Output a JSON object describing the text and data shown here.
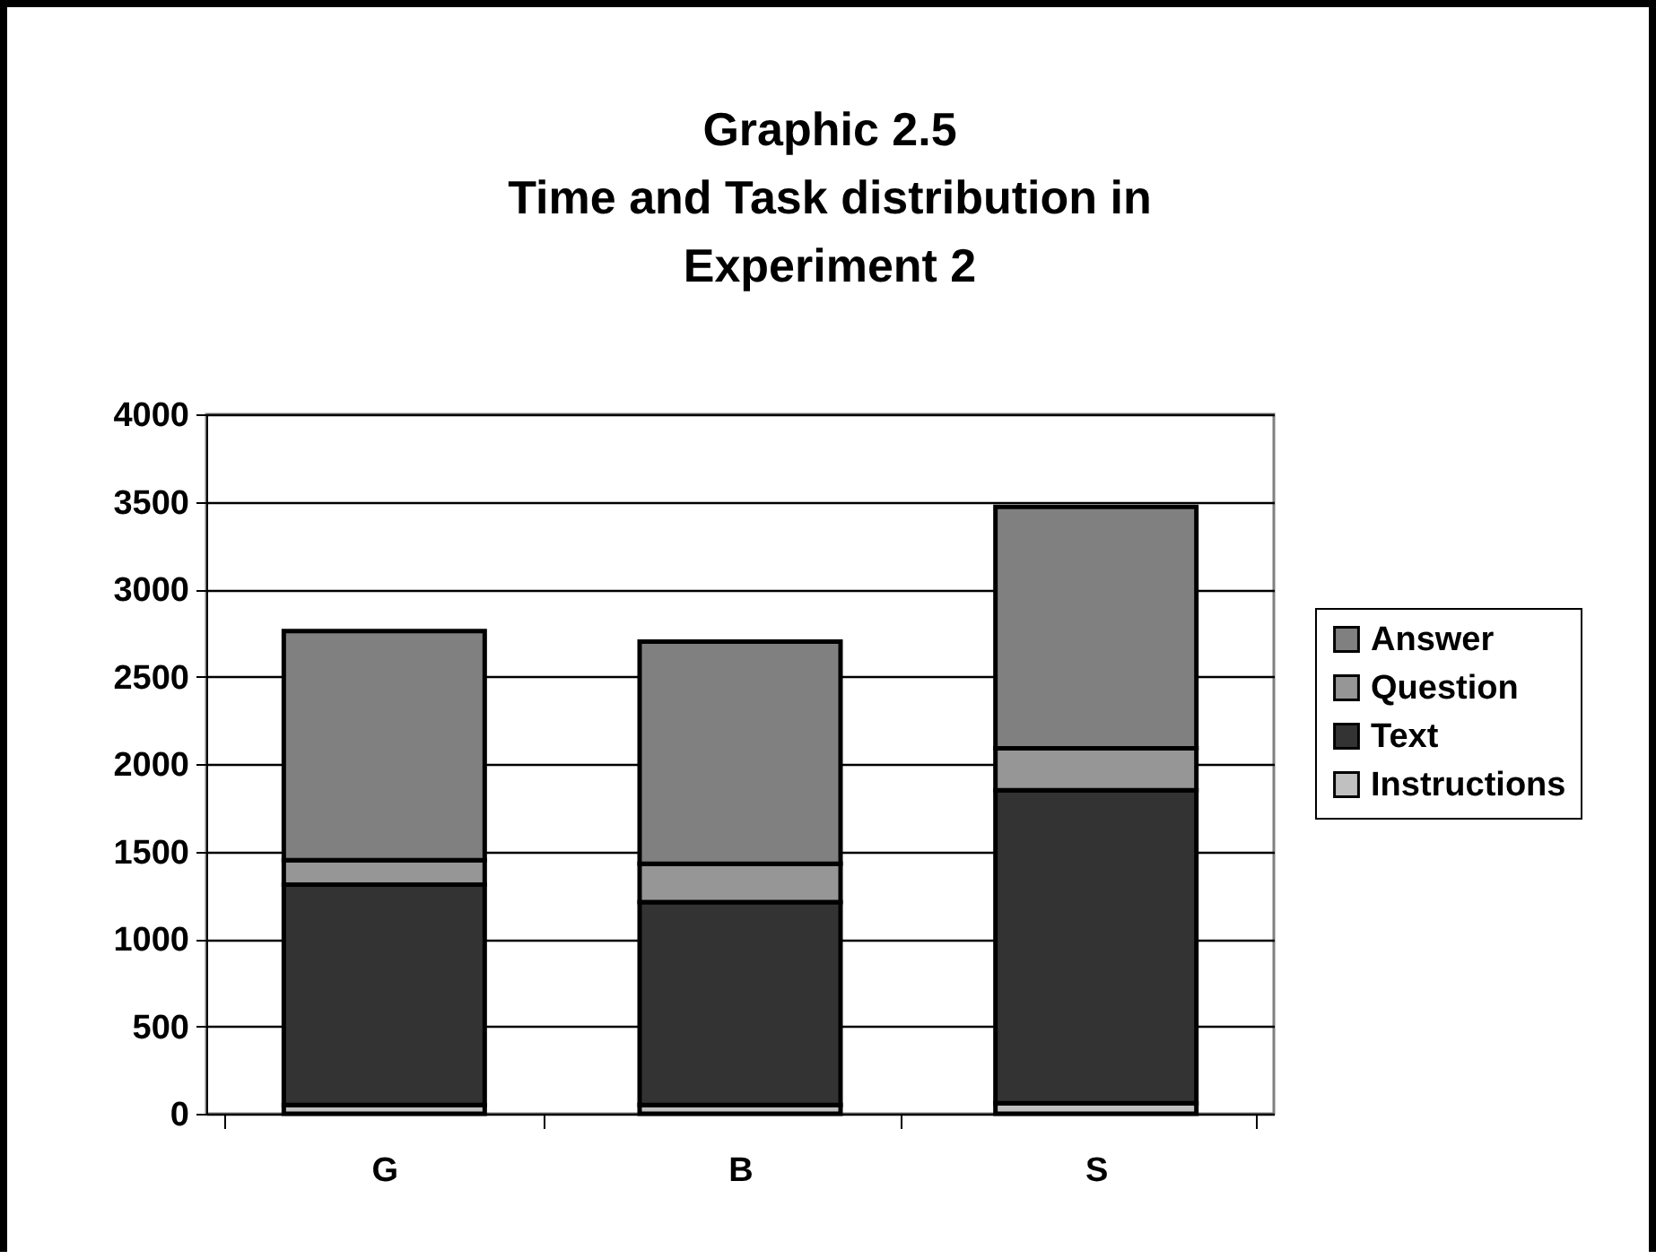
{
  "chart_data": {
    "type": "bar",
    "title": "Graphic 2.5\nTime and Task distribution in\nExperiment 2",
    "categories": [
      "G",
      "B",
      "S"
    ],
    "stacked": true,
    "series": [
      {
        "name": "Instructions",
        "color": "#c0c0c0",
        "values": [
          50,
          50,
          60
        ]
      },
      {
        "name": "Text",
        "color": "#333333",
        "values": [
          1260,
          1160,
          1790
        ]
      },
      {
        "name": "Question",
        "color": "#969696",
        "values": [
          140,
          220,
          240
        ]
      },
      {
        "name": "Answer",
        "color": "#808080",
        "values": [
          1310,
          1270,
          1380
        ]
      }
    ],
    "ylim": [
      0,
      4000
    ],
    "yticks": [
      0,
      500,
      1000,
      1500,
      2000,
      2500,
      3000,
      3500,
      4000
    ],
    "grid": "y",
    "legend": "right"
  }
}
